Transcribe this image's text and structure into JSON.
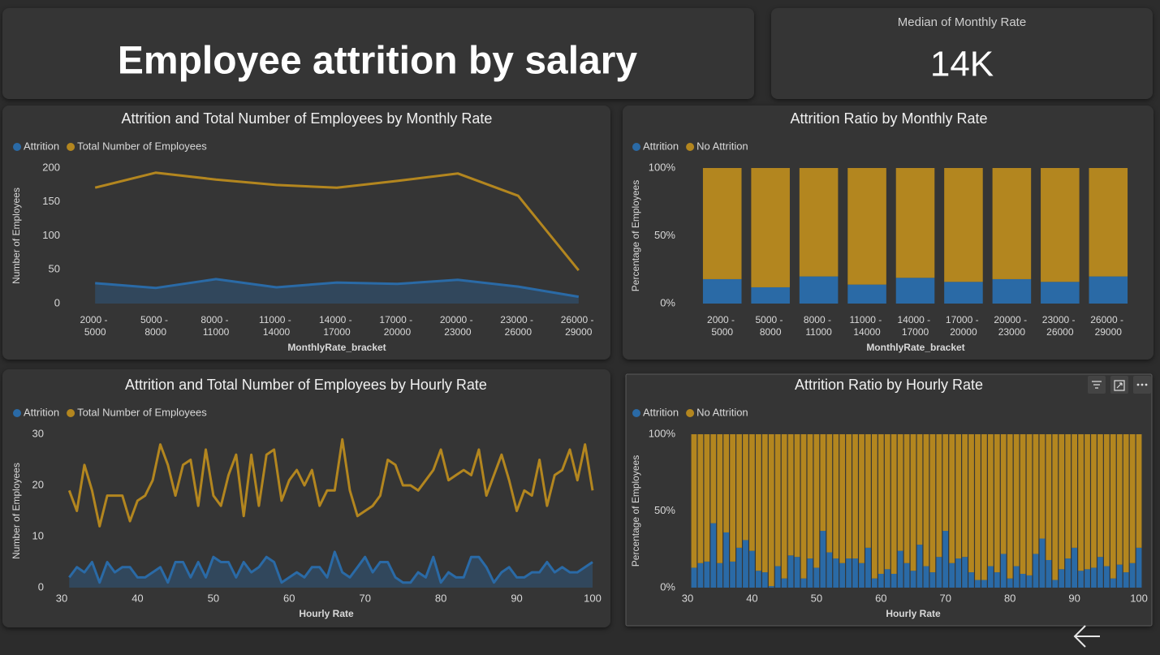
{
  "header": {
    "title": "Employee attrition by salary"
  },
  "card": {
    "label": "Median of Monthly Rate",
    "value": "14K"
  },
  "chart_data": [
    {
      "type": "line",
      "title": "Attrition and Total Number of Employees by Monthly Rate",
      "x_label": "MonthlyRate_bracket",
      "y_label": "Number of Employees",
      "legend": "top-left",
      "categories": [
        "2000 - 5000",
        "5000 - 8000",
        "8000 - 11000",
        "11000 - 14000",
        "14000 - 17000",
        "17000 - 20000",
        "20000 - 23000",
        "23000 - 26000",
        "26000 - 29000"
      ],
      "series": [
        {
          "name": "Attrition",
          "color": "#2a6aa6",
          "area": true,
          "values": [
            30,
            23,
            36,
            24,
            31,
            29,
            35,
            25,
            10
          ]
        },
        {
          "name": "Total Number of Employees",
          "color": "#b3861f",
          "area": false,
          "values": [
            171,
            193,
            183,
            175,
            171,
            181,
            192,
            159,
            49
          ]
        }
      ],
      "ylim": [
        0,
        200
      ],
      "yticks": [
        0,
        50,
        100,
        150,
        200
      ]
    },
    {
      "type": "stacked_bar",
      "title": "Attrition Ratio by Monthly Rate",
      "x_label": "MonthlyRate_bracket",
      "y_label": "Percentage of Employees",
      "legend": "top-left",
      "categories": [
        "2000 - 5000",
        "5000 - 8000",
        "8000 - 11000",
        "11000 - 14000",
        "14000 - 17000",
        "17000 - 20000",
        "20000 - 23000",
        "23000 - 26000",
        "26000 - 29000"
      ],
      "series": [
        {
          "name": "Attrition",
          "color": "#2a6aa6",
          "values": [
            18,
            12,
            20,
            14,
            19,
            16,
            18,
            16,
            20
          ]
        },
        {
          "name": "No Attrition",
          "color": "#b3861f",
          "values": [
            82,
            88,
            80,
            86,
            81,
            84,
            82,
            84,
            80
          ]
        }
      ],
      "ylim": [
        0,
        100
      ],
      "yticks": [
        {
          "value": 0,
          "label": "0%"
        },
        {
          "value": 50,
          "label": "50%"
        },
        {
          "value": 100,
          "label": "100%"
        }
      ]
    },
    {
      "type": "line",
      "title": "Attrition and Total Number of Employees by Hourly Rate",
      "x_label": "Hourly Rate",
      "y_label": "Number of Employees",
      "legend": "top-left",
      "x": [
        31,
        32,
        33,
        34,
        35,
        36,
        37,
        38,
        39,
        40,
        41,
        42,
        43,
        44,
        45,
        46,
        47,
        48,
        49,
        50,
        51,
        52,
        53,
        54,
        55,
        56,
        57,
        58,
        59,
        60,
        61,
        62,
        63,
        64,
        65,
        66,
        67,
        68,
        69,
        70,
        71,
        72,
        73,
        74,
        75,
        76,
        77,
        78,
        79,
        80,
        81,
        82,
        83,
        84,
        85,
        86,
        87,
        88,
        89,
        90,
        91,
        92,
        93,
        94,
        95,
        96,
        97,
        98,
        99,
        100
      ],
      "series": [
        {
          "name": "Attrition",
          "color": "#2a6aa6",
          "area": true,
          "values": [
            2,
            4,
            3,
            5,
            1,
            5,
            3,
            4,
            4,
            2,
            2,
            3,
            4,
            1,
            5,
            5,
            2,
            5,
            2,
            6,
            5,
            5,
            2,
            5,
            3,
            4,
            6,
            5,
            1,
            2,
            3,
            2,
            4,
            4,
            2,
            7,
            3,
            2,
            4,
            6,
            3,
            5,
            5,
            2,
            1,
            1,
            3,
            2,
            6,
            1,
            3,
            2,
            2,
            6,
            6,
            4,
            1,
            3,
            4,
            2,
            2,
            3,
            3,
            5,
            3,
            4,
            3,
            3,
            4,
            5
          ]
        },
        {
          "name": "Total Number of Employees",
          "color": "#b3861f",
          "area": false,
          "values": [
            19,
            15,
            24,
            19,
            12,
            18,
            18,
            18,
            13,
            17,
            18,
            21,
            28,
            24,
            18,
            24,
            25,
            16,
            27,
            18,
            16,
            22,
            26,
            14,
            26,
            16,
            26,
            27,
            17,
            21,
            23,
            20,
            23,
            16,
            19,
            19,
            29,
            19,
            14,
            15,
            16,
            18,
            25,
            24,
            20,
            20,
            19,
            21,
            23,
            27,
            21,
            22,
            23,
            22,
            27,
            18,
            22,
            26,
            21,
            15,
            19,
            18,
            25,
            16,
            22,
            23,
            27,
            21,
            28,
            19
          ]
        }
      ],
      "xlim": [
        30,
        100
      ],
      "xticks": [
        30,
        40,
        50,
        60,
        70,
        80,
        90,
        100
      ],
      "ylim": [
        0,
        30
      ],
      "yticks": [
        0,
        10,
        20,
        30
      ]
    },
    {
      "type": "stacked_bar",
      "title": "Attrition Ratio by Hourly Rate",
      "x_label": "Hourly Rate",
      "y_label": "Percentage of Employees",
      "legend": "top-left",
      "x": [
        31,
        32,
        33,
        34,
        35,
        36,
        37,
        38,
        39,
        40,
        41,
        42,
        43,
        44,
        45,
        46,
        47,
        48,
        49,
        50,
        51,
        52,
        53,
        54,
        55,
        56,
        57,
        58,
        59,
        60,
        61,
        62,
        63,
        64,
        65,
        66,
        67,
        68,
        69,
        70,
        71,
        72,
        73,
        74,
        75,
        76,
        77,
        78,
        79,
        80,
        81,
        82,
        83,
        84,
        85,
        86,
        87,
        88,
        89,
        90,
        91,
        92,
        93,
        94,
        95,
        96,
        97,
        98,
        99,
        100
      ],
      "series": [
        {
          "name": "Attrition",
          "color": "#2a6aa6",
          "values": [
            13,
            16,
            17,
            42,
            16,
            36,
            17,
            26,
            31,
            24,
            11,
            10,
            1,
            14,
            6,
            21,
            20,
            6,
            19,
            13,
            37,
            23,
            19,
            16,
            19,
            19,
            16,
            26,
            6,
            9,
            12,
            9,
            24,
            16,
            11,
            28,
            14,
            10,
            20,
            37,
            16,
            19,
            20,
            10,
            5,
            5,
            14,
            10,
            22,
            6,
            14,
            9,
            8,
            22,
            32,
            18,
            5,
            12,
            19,
            26,
            11,
            12,
            13,
            20,
            14,
            6,
            15,
            10,
            16,
            26
          ]
        },
        {
          "name": "No Attrition",
          "color": "#b3861f",
          "values": [
            87,
            84,
            83,
            58,
            84,
            64,
            83,
            74,
            69,
            76,
            89,
            90,
            99,
            86,
            94,
            79,
            80,
            94,
            81,
            87,
            63,
            77,
            81,
            84,
            81,
            81,
            84,
            74,
            94,
            91,
            88,
            91,
            76,
            84,
            89,
            72,
            86,
            90,
            80,
            63,
            84,
            81,
            80,
            90,
            95,
            95,
            86,
            90,
            78,
            94,
            86,
            91,
            92,
            78,
            68,
            82,
            95,
            88,
            81,
            74,
            89,
            88,
            87,
            80,
            86,
            94,
            85,
            90,
            84,
            74
          ]
        }
      ],
      "xlim": [
        30,
        101
      ],
      "xticks": [
        30,
        40,
        50,
        60,
        70,
        80,
        90,
        100
      ],
      "ylim": [
        0,
        100
      ],
      "yticks": [
        {
          "value": 0,
          "label": "0%"
        },
        {
          "value": 50,
          "label": "50%"
        },
        {
          "value": 100,
          "label": "100%"
        }
      ]
    }
  ]
}
